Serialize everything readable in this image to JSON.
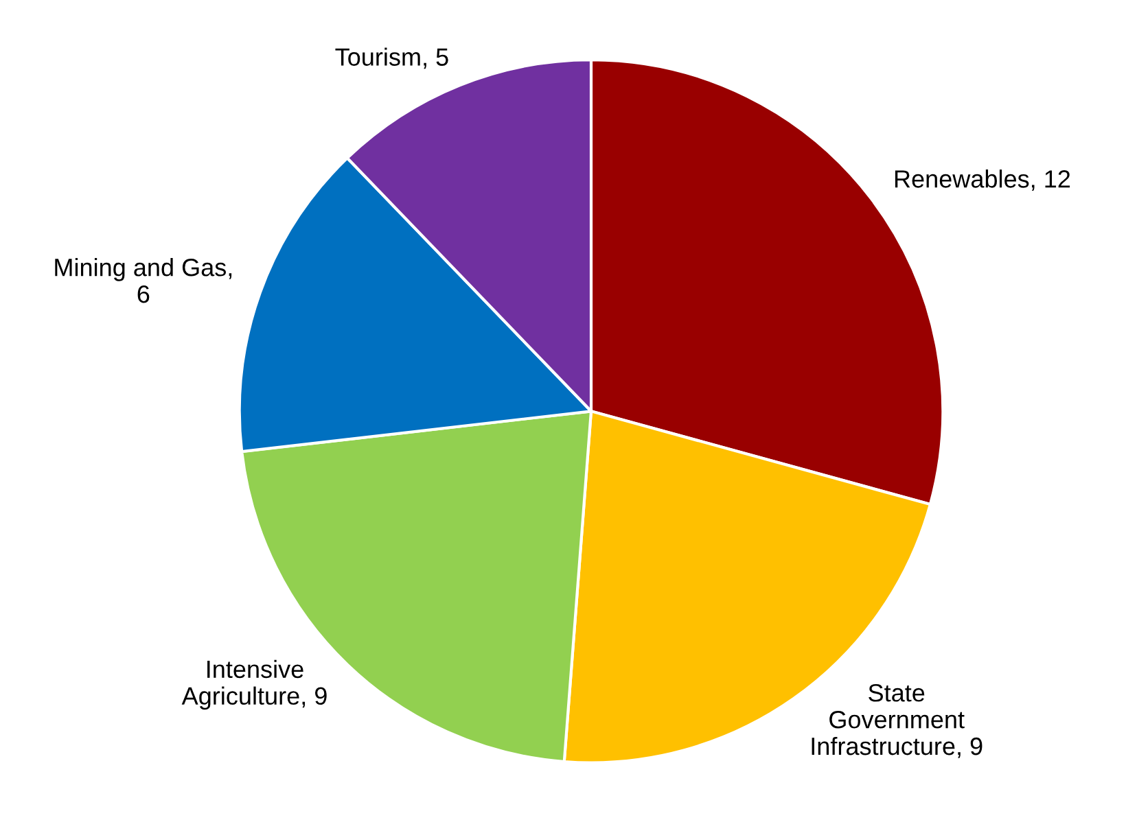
{
  "chart_data": {
    "type": "pie",
    "categories": [
      "Renewables, 12",
      "State\nGovernment\nInfrastructure, 9",
      "Intensive\nAgriculture, 9",
      "Mining and Gas,\n6",
      "Tourism, 5"
    ],
    "values": [
      12,
      9,
      9,
      6,
      5
    ],
    "colors": [
      "#990000",
      "#ffc000",
      "#92d050",
      "#0070c0",
      "#7030a0"
    ],
    "legend": false
  }
}
